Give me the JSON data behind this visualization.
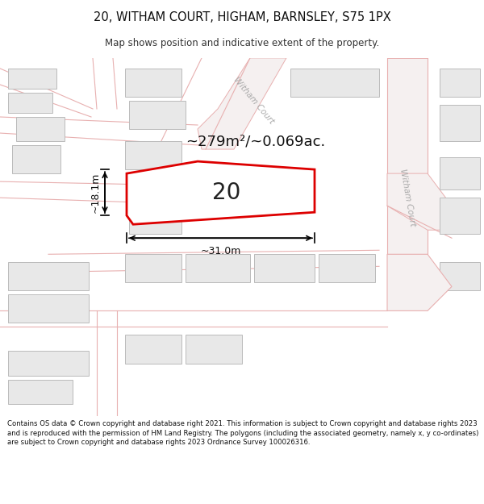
{
  "title_line1": "20, WITHAM COURT, HIGHAM, BARNSLEY, S75 1PX",
  "title_line2": "Map shows position and indicative extent of the property.",
  "footer_text": "Contains OS data © Crown copyright and database right 2021. This information is subject to Crown copyright and database rights 2023 and is reproduced with the permission of HM Land Registry. The polygons (including the associated geometry, namely x, y co-ordinates) are subject to Crown copyright and database rights 2023 Ordnance Survey 100026316.",
  "street_label_upper": "Witham Court",
  "street_label_right": "Witham Court",
  "area_text": "~279m²/~0.069ac.",
  "plot_label": "20",
  "dim_width": "~31.0m",
  "dim_height": "~18.1m",
  "highlight_color": "#dd0000",
  "building_fill": "#e8e8e8",
  "building_edge": "#bbbbbb",
  "road_line_color": "#e8b0b0",
  "road_fill": "#f5f0f0",
  "map_bg": "#f7f4f4",
  "white": "#ffffff",
  "dark_text": "#222222",
  "grey_text": "#aaaaaa"
}
